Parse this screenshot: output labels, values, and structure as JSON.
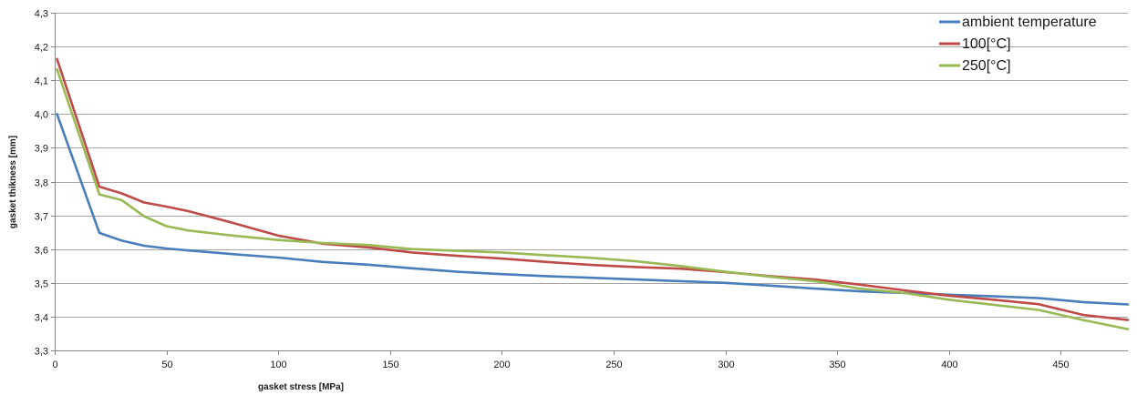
{
  "chart_data": {
    "type": "line",
    "title": "",
    "xlabel": "gasket stress [MPa]",
    "ylabel": "gasket thikness [mm]",
    "xlim": [
      0,
      480
    ],
    "ylim": [
      3.3,
      4.3
    ],
    "x_ticks": [
      0,
      50,
      100,
      150,
      200,
      250,
      300,
      350,
      400,
      450
    ],
    "x_tick_labels": [
      "0",
      "50",
      "100",
      "150",
      "200",
      "250",
      "300",
      "350",
      "400",
      "450"
    ],
    "y_ticks": [
      3.3,
      3.4,
      3.5,
      3.6,
      3.7,
      3.8,
      3.9,
      4.0,
      4.1,
      4.2,
      4.3
    ],
    "y_tick_labels": [
      "3,3",
      "3,4",
      "3,5",
      "3,6",
      "3,7",
      "3,8",
      "3,9",
      "4,0",
      "4,1",
      "4,2",
      "4,3"
    ],
    "grid": "horizontal",
    "legend_position": "top-right",
    "series": [
      {
        "name": "ambient temperature",
        "color": "#4a7ebb",
        "points": [
          [
            1,
            4.0
          ],
          [
            20,
            3.648
          ],
          [
            30,
            3.625
          ],
          [
            40,
            3.61
          ],
          [
            50,
            3.602
          ],
          [
            60,
            3.596
          ],
          [
            80,
            3.585
          ],
          [
            100,
            3.575
          ],
          [
            120,
            3.562
          ],
          [
            140,
            3.554
          ],
          [
            160,
            3.543
          ],
          [
            180,
            3.533
          ],
          [
            200,
            3.526
          ],
          [
            220,
            3.52
          ],
          [
            240,
            3.515
          ],
          [
            260,
            3.51
          ],
          [
            280,
            3.505
          ],
          [
            300,
            3.5
          ],
          [
            320,
            3.492
          ],
          [
            340,
            3.483
          ],
          [
            360,
            3.475
          ],
          [
            380,
            3.47
          ],
          [
            400,
            3.465
          ],
          [
            420,
            3.46
          ],
          [
            440,
            3.455
          ],
          [
            460,
            3.443
          ],
          [
            480,
            3.436
          ]
        ]
      },
      {
        "name": "100[°C]",
        "color": "#be4b48",
        "points": [
          [
            1,
            4.163
          ],
          [
            20,
            3.785
          ],
          [
            30,
            3.765
          ],
          [
            40,
            3.738
          ],
          [
            50,
            3.726
          ],
          [
            60,
            3.712
          ],
          [
            80,
            3.677
          ],
          [
            100,
            3.64
          ],
          [
            120,
            3.616
          ],
          [
            140,
            3.605
          ],
          [
            160,
            3.59
          ],
          [
            180,
            3.58
          ],
          [
            200,
            3.572
          ],
          [
            220,
            3.562
          ],
          [
            240,
            3.553
          ],
          [
            260,
            3.547
          ],
          [
            280,
            3.542
          ],
          [
            300,
            3.532
          ],
          [
            320,
            3.52
          ],
          [
            340,
            3.51
          ],
          [
            360,
            3.495
          ],
          [
            380,
            3.478
          ],
          [
            400,
            3.462
          ],
          [
            420,
            3.45
          ],
          [
            440,
            3.437
          ],
          [
            460,
            3.405
          ],
          [
            480,
            3.39
          ]
        ]
      },
      {
        "name": "250[°C]",
        "color": "#98b954",
        "points": [
          [
            1,
            4.133
          ],
          [
            20,
            3.762
          ],
          [
            30,
            3.745
          ],
          [
            40,
            3.697
          ],
          [
            50,
            3.668
          ],
          [
            60,
            3.655
          ],
          [
            80,
            3.64
          ],
          [
            100,
            3.627
          ],
          [
            120,
            3.618
          ],
          [
            140,
            3.612
          ],
          [
            160,
            3.6
          ],
          [
            180,
            3.595
          ],
          [
            200,
            3.59
          ],
          [
            220,
            3.582
          ],
          [
            240,
            3.574
          ],
          [
            260,
            3.564
          ],
          [
            280,
            3.55
          ],
          [
            300,
            3.533
          ],
          [
            320,
            3.518
          ],
          [
            340,
            3.505
          ],
          [
            360,
            3.483
          ],
          [
            380,
            3.47
          ],
          [
            400,
            3.45
          ],
          [
            420,
            3.435
          ],
          [
            440,
            3.42
          ],
          [
            460,
            3.39
          ],
          [
            480,
            3.363
          ]
        ]
      }
    ]
  }
}
